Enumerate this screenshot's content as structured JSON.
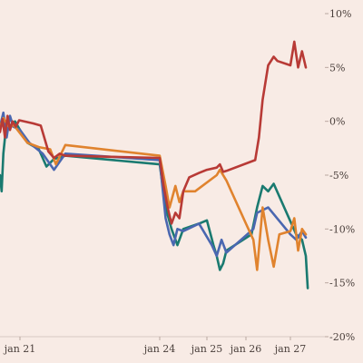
{
  "chart_data": {
    "type": "line",
    "title": "",
    "xlabel": "",
    "ylabel": "",
    "ylim": [
      -20,
      10
    ],
    "y_axis_position": "right",
    "y_ticks": [
      10,
      5,
      0,
      -5,
      -10,
      -15,
      -20
    ],
    "y_tick_labels": [
      "10%",
      "5%",
      "0%",
      "-5%",
      "-10%",
      "-15%",
      "-20%"
    ],
    "x_ticks": [
      "2024-01-21",
      "2024-01-24",
      "2024-01-25",
      "2024-01-26",
      "2024-01-27"
    ],
    "x_tick_labels": [
      "jan 21",
      "jan 24",
      "jan 25",
      "jan 26",
      "jan 27"
    ],
    "xlim": [
      "2024-01-20 00:00",
      "2024-01-27 12:00"
    ],
    "grid": false,
    "legend": "none",
    "series": [
      {
        "color": "#b83a36",
        "points": [
          [
            "2024-01-20 00:00",
            -1.0
          ],
          [
            "2024-01-20 03:00",
            0.2
          ],
          [
            "2024-01-20 06:00",
            -1.5
          ],
          [
            "2024-01-20 09:00",
            0.5
          ],
          [
            "2024-01-20 12:00",
            -0.8
          ],
          [
            "2024-01-20 15:00",
            0.0
          ],
          [
            "2024-01-20 19:00",
            -0.5
          ],
          [
            "2024-01-20 23:00",
            0.1
          ],
          [
            "2024-01-21 07:00",
            -0.2
          ],
          [
            "2024-01-21 11:00",
            -0.4
          ],
          [
            "2024-01-21 15:00",
            -2.8
          ],
          [
            "2024-01-21 18:00",
            -3.4
          ],
          [
            "2024-01-21 21:00",
            -3.0
          ],
          [
            "2024-01-22 00:00",
            -3.2
          ],
          [
            "2024-01-24 00:00",
            -3.4
          ],
          [
            "2024-01-24 02:00",
            -6.0
          ],
          [
            "2024-01-24 04:00",
            -8.0
          ],
          [
            "2024-01-24 06:00",
            -9.5
          ],
          [
            "2024-01-24 08:00",
            -8.5
          ],
          [
            "2024-01-24 10:00",
            -9.0
          ],
          [
            "2024-01-24 12:00",
            -6.5
          ],
          [
            "2024-01-24 15:00",
            -5.2
          ],
          [
            "2024-01-24 20:00",
            -4.8
          ],
          [
            "2024-01-25 00:00",
            -4.5
          ],
          [
            "2024-01-25 06:00",
            -4.3
          ],
          [
            "2024-01-25 08:00",
            -4.0
          ],
          [
            "2024-01-25 10:00",
            -4.7
          ],
          [
            "2024-01-25 12:00",
            -4.6
          ],
          [
            "2024-01-26 05:00",
            -3.6
          ],
          [
            "2024-01-26 07:00",
            -1.5
          ],
          [
            "2024-01-26 09:00",
            2.0
          ],
          [
            "2024-01-26 12:00",
            5.2
          ],
          [
            "2024-01-26 15:00",
            6.0
          ],
          [
            "2024-01-26 17:00",
            5.6
          ],
          [
            "2024-01-27 00:00",
            5.2
          ],
          [
            "2024-01-27 02:00",
            7.4
          ],
          [
            "2024-01-27 04:00",
            5.0
          ],
          [
            "2024-01-27 06:00",
            6.5
          ],
          [
            "2024-01-27 08:00",
            5.0
          ]
        ]
      },
      {
        "color": "#e0832e",
        "points": [
          [
            "2024-01-20 00:00",
            -0.5
          ],
          [
            "2024-01-20 04:00",
            0.3
          ],
          [
            "2024-01-20 08:00",
            -0.2
          ],
          [
            "2024-01-20 12:00",
            -0.6
          ],
          [
            "2024-01-20 16:00",
            -0.3
          ],
          [
            "2024-01-21 04:00",
            -2.0
          ],
          [
            "2024-01-21 10:00",
            -2.4
          ],
          [
            "2024-01-21 16:00",
            -2.6
          ],
          [
            "2024-01-21 19:00",
            -4.0
          ],
          [
            "2024-01-22 00:00",
            -2.2
          ],
          [
            "2024-01-24 00:00",
            -3.2
          ],
          [
            "2024-01-24 03:00",
            -6.0
          ],
          [
            "2024-01-24 05:00",
            -8.0
          ],
          [
            "2024-01-24 08:00",
            -6.0
          ],
          [
            "2024-01-24 10:00",
            -7.5
          ],
          [
            "2024-01-24 12:00",
            -6.5
          ],
          [
            "2024-01-24 18:00",
            -6.5
          ],
          [
            "2024-01-25 06:00",
            -5.0
          ],
          [
            "2024-01-25 08:00",
            -4.5
          ],
          [
            "2024-01-25 12:00",
            -5.5
          ],
          [
            "2024-01-26 00:00",
            -9.5
          ],
          [
            "2024-01-26 04:00",
            -11.0
          ],
          [
            "2024-01-26 06:00",
            -13.8
          ],
          [
            "2024-01-26 09:00",
            -8.0
          ],
          [
            "2024-01-26 12:00",
            -11.0
          ],
          [
            "2024-01-26 15:00",
            -13.5
          ],
          [
            "2024-01-26 18:00",
            -10.5
          ],
          [
            "2024-01-27 00:00",
            -10.2
          ],
          [
            "2024-01-27 02:00",
            -9.0
          ],
          [
            "2024-01-27 04:00",
            -12.0
          ],
          [
            "2024-01-27 06:00",
            -10.0
          ],
          [
            "2024-01-27 08:00",
            -10.5
          ]
        ]
      },
      {
        "color": "#4a67b0",
        "points": [
          [
            "2024-01-20 00:00",
            -0.5
          ],
          [
            "2024-01-20 04:00",
            0.8
          ],
          [
            "2024-01-20 08:00",
            -1.5
          ],
          [
            "2024-01-20 12:00",
            0.5
          ],
          [
            "2024-01-20 16:00",
            -0.5
          ],
          [
            "2024-01-21 00:00",
            -0.8
          ],
          [
            "2024-01-21 05:00",
            -2.0
          ],
          [
            "2024-01-21 12:00",
            -3.0
          ],
          [
            "2024-01-21 18:00",
            -4.5
          ],
          [
            "2024-01-22 00:00",
            -3.0
          ],
          [
            "2024-01-24 00:00",
            -3.6
          ],
          [
            "2024-01-24 03:00",
            -9.0
          ],
          [
            "2024-01-24 05:00",
            -10.5
          ],
          [
            "2024-01-24 07:00",
            -11.5
          ],
          [
            "2024-01-24 09:00",
            -10.0
          ],
          [
            "2024-01-24 12:00",
            -10.2
          ],
          [
            "2024-01-24 20:00",
            -9.5
          ],
          [
            "2024-01-25 03:00",
            -11.5
          ],
          [
            "2024-01-25 06:00",
            -12.5
          ],
          [
            "2024-01-25 09:00",
            -11.0
          ],
          [
            "2024-01-25 12:00",
            -12.2
          ],
          [
            "2024-01-26 04:00",
            -10.0
          ],
          [
            "2024-01-26 06:00",
            -8.5
          ],
          [
            "2024-01-26 12:00",
            -8.0
          ],
          [
            "2024-01-27 00:00",
            -10.5
          ],
          [
            "2024-01-27 03:00",
            -11.0
          ],
          [
            "2024-01-27 06:00",
            -10.2
          ],
          [
            "2024-01-27 08:00",
            -10.8
          ]
        ]
      },
      {
        "color": "#1a7a70",
        "points": [
          [
            "2024-01-20 00:00",
            -5.0
          ],
          [
            "2024-01-20 02:00",
            -6.5
          ],
          [
            "2024-01-20 04:00",
            -3.0
          ],
          [
            "2024-01-20 06:00",
            -1.5
          ],
          [
            "2024-01-20 09:00",
            0.2
          ],
          [
            "2024-01-20 12:00",
            -0.5
          ],
          [
            "2024-01-20 18:00",
            0.0
          ],
          [
            "2024-01-21 04:00",
            -2.0
          ],
          [
            "2024-01-21 10:00",
            -2.6
          ],
          [
            "2024-01-21 14:00",
            -4.2
          ],
          [
            "2024-01-21 18:00",
            -3.5
          ],
          [
            "2024-01-22 00:00",
            -3.2
          ],
          [
            "2024-01-24 00:00",
            -4.0
          ],
          [
            "2024-01-24 03:00",
            -8.0
          ],
          [
            "2024-01-24 06:00",
            -10.0
          ],
          [
            "2024-01-24 09:00",
            -11.5
          ],
          [
            "2024-01-24 12:00",
            -10.0
          ],
          [
            "2024-01-24 20:00",
            -9.5
          ],
          [
            "2024-01-25 00:00",
            -9.2
          ],
          [
            "2024-01-25 04:00",
            -11.5
          ],
          [
            "2024-01-25 06:00",
            -12.5
          ],
          [
            "2024-01-25 08:00",
            -13.8
          ],
          [
            "2024-01-25 10:00",
            -13.2
          ],
          [
            "2024-01-25 12:00",
            -12.0
          ],
          [
            "2024-01-26 03:00",
            -10.5
          ],
          [
            "2024-01-26 06:00",
            -8.0
          ],
          [
            "2024-01-26 09:00",
            -6.0
          ],
          [
            "2024-01-26 12:00",
            -6.5
          ],
          [
            "2024-01-26 15:00",
            -5.8
          ],
          [
            "2024-01-27 03:00",
            -10.5
          ],
          [
            "2024-01-27 06:00",
            -11.0
          ],
          [
            "2024-01-27 08:00",
            -12.5
          ],
          [
            "2024-01-27 09:00",
            -15.5
          ]
        ]
      }
    ]
  }
}
